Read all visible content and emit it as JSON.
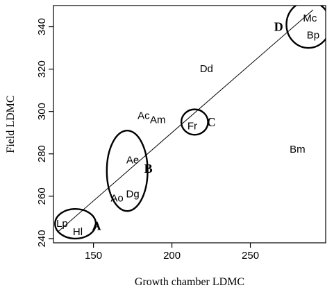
{
  "chart_data": {
    "type": "scatter",
    "title": "",
    "xlabel": "Growth chamber LDMC",
    "ylabel": "Field LDMC",
    "xlim": [
      124.5,
      298
    ],
    "ylim": [
      238,
      350
    ],
    "x_ticks": [
      {
        "value": 150,
        "label": "150"
      },
      {
        "value": 200,
        "label": "200"
      },
      {
        "value": 250,
        "label": "250"
      }
    ],
    "y_ticks": [
      {
        "value": 240,
        "label": "240"
      },
      {
        "value": 260,
        "label": "260"
      },
      {
        "value": 280,
        "label": "280"
      },
      {
        "value": 300,
        "label": "300"
      },
      {
        "value": 320,
        "label": "320"
      },
      {
        "value": 340,
        "label": "340"
      }
    ],
    "points": [
      {
        "label": "Lp",
        "x": 130,
        "y": 247
      },
      {
        "label": "Hl",
        "x": 140,
        "y": 243
      },
      {
        "label": "Ao",
        "x": 165,
        "y": 259
      },
      {
        "label": "Dg",
        "x": 175,
        "y": 261
      },
      {
        "label": "Ae",
        "x": 175,
        "y": 277
      },
      {
        "label": "Ac",
        "x": 182,
        "y": 298
      },
      {
        "label": "Am",
        "x": 191,
        "y": 296
      },
      {
        "label": "Fr",
        "x": 213,
        "y": 293
      },
      {
        "label": "Dd",
        "x": 222,
        "y": 320
      },
      {
        "label": "Bm",
        "x": 280,
        "y": 282
      },
      {
        "label": "Mc",
        "x": 288,
        "y": 344
      },
      {
        "label": "Bp",
        "x": 290,
        "y": 336
      }
    ],
    "fit_line": {
      "x1": 127,
      "y1": 243,
      "x2": 290,
      "y2": 348
    },
    "groups": [
      {
        "label": "A",
        "cx": 138.5,
        "cy": 247,
        "rx": 13,
        "ry": 7,
        "label_x": 152,
        "label_y": 246
      },
      {
        "label": "B",
        "cx": 171.5,
        "cy": 272,
        "rx": 13,
        "ry": 19,
        "label_x": 185,
        "label_y": 273
      },
      {
        "label": "C",
        "cx": 214.5,
        "cy": 295,
        "rx": 8.5,
        "ry": 6,
        "label_x": 225,
        "label_y": 295
      },
      {
        "label": "D",
        "cx": 287,
        "cy": 341,
        "rx": 14,
        "ry": 11,
        "label_x": 268,
        "label_y": 340
      }
    ],
    "grid": false,
    "legend": "none"
  }
}
